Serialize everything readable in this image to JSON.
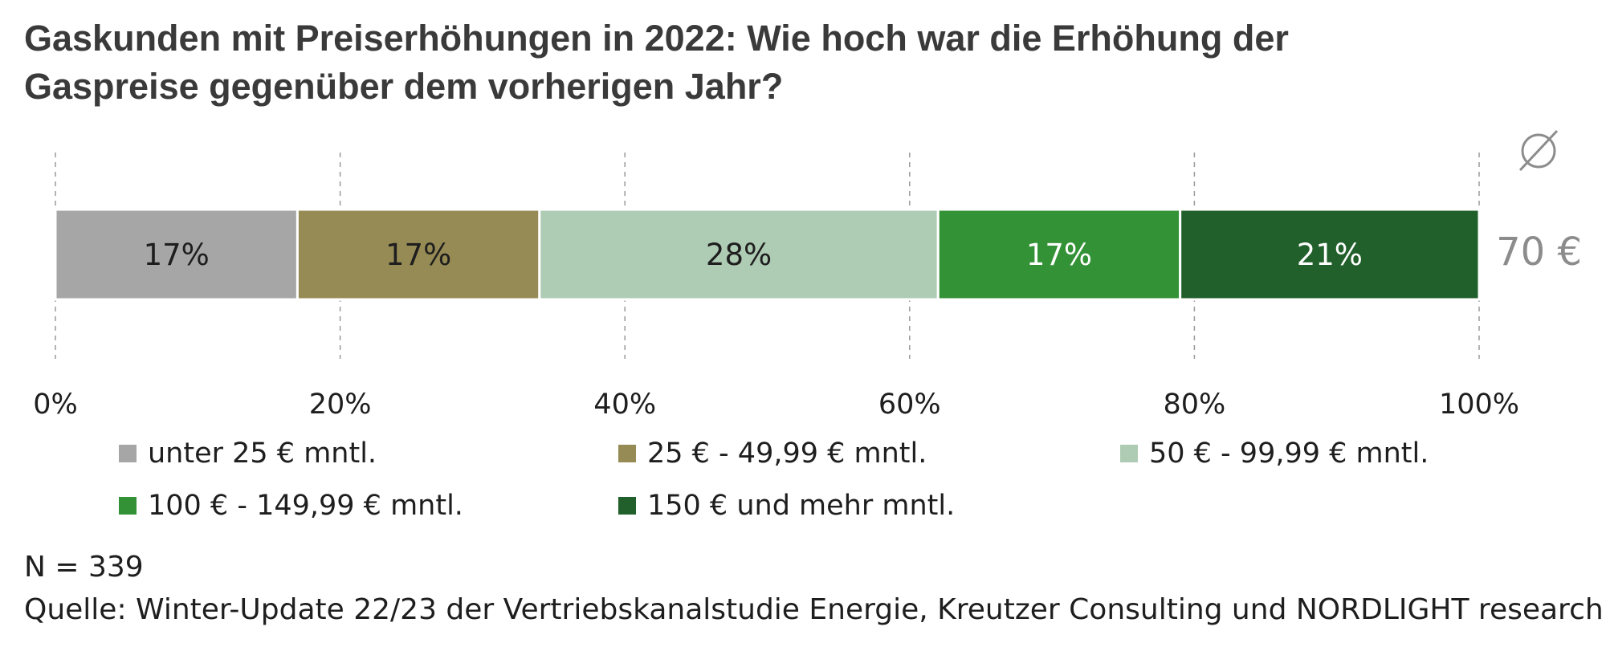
{
  "title": {
    "line1": "Gaskunden mit Preiserhöhungen in 2022: Wie hoch war die Erhöhung der",
    "line2": "Gaspreise gegenüber dem vorherigen Jahr?"
  },
  "chart_data": {
    "type": "bar",
    "orientation": "horizontal-stacked-100",
    "categories": [
      ""
    ],
    "series": [
      {
        "name": "unter 25 € mntl.",
        "values": [
          17
        ],
        "label": "17%",
        "color": "#a6a6a6",
        "label_color": "#1e1e1e"
      },
      {
        "name": "25 € - 49,99 € mntl.",
        "values": [
          17
        ],
        "label": "17%",
        "color": "#978b55",
        "label_color": "#1e1e1e"
      },
      {
        "name": "50 € - 99,99 € mntl.",
        "values": [
          28
        ],
        "label": "28%",
        "color": "#aecbb4",
        "label_color": "#1e1e1e"
      },
      {
        "name": "100 € - 149,99 € mntl.",
        "values": [
          17
        ],
        "label": "17%",
        "color": "#339235",
        "label_color": "#ffffff"
      },
      {
        "name": "150 € und mehr mntl.",
        "values": [
          21
        ],
        "label": "21%",
        "color": "#21602a",
        "label_color": "#ffffff"
      }
    ],
    "xlim": [
      0,
      100
    ],
    "x_ticks": [
      "0%",
      "20%",
      "40%",
      "60%",
      "80%",
      "100%"
    ],
    "grid": "vertical dashed",
    "legend_position": "bottom",
    "average": {
      "symbol": "∅",
      "value": "70 €",
      "color": "#8c8c8c"
    }
  },
  "footer": {
    "n": "N = 339",
    "source": "Quelle: Winter-Update 22/23 der Vertriebskanalstudie Energie, Kreutzer Consulting und NORDLIGHT research"
  }
}
